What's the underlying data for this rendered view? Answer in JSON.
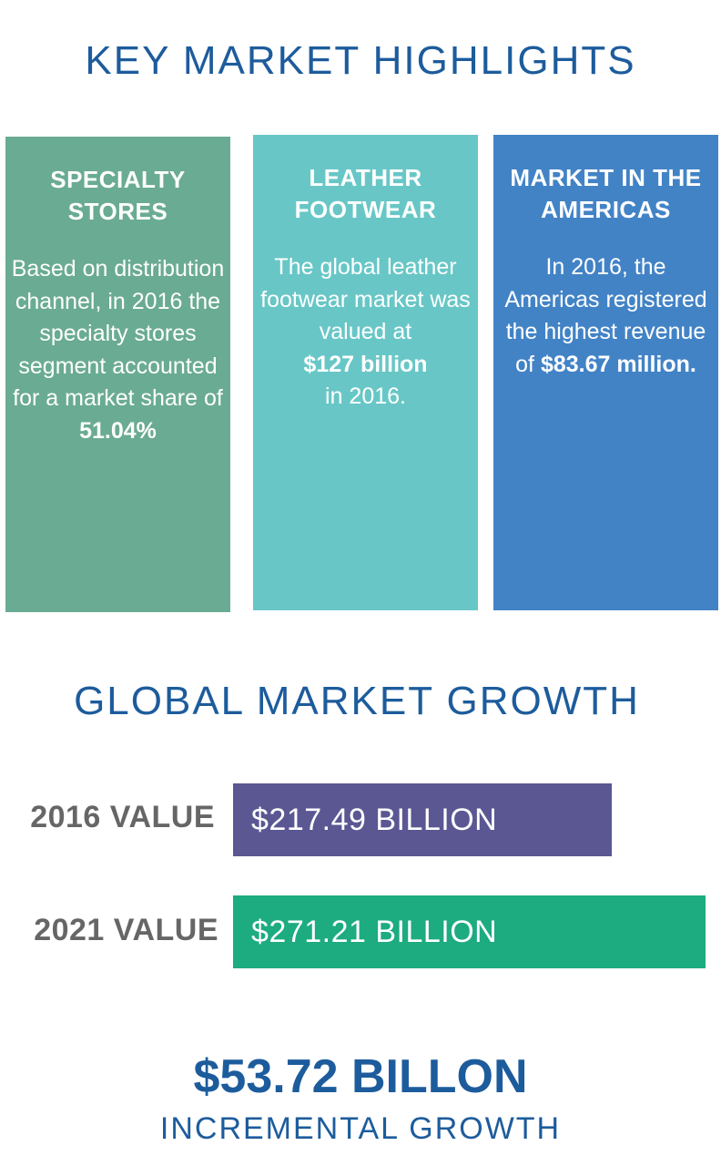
{
  "header": {
    "title": "KEY MARKET HIGHLIGHTS"
  },
  "cards": [
    {
      "title": "SPECIALTY STORES",
      "body": "Based on distribution channel, in 2016 the specialty stores segment accounted for a market share of",
      "highlight": "51.04%",
      "suffix": "",
      "color": "#6aab93"
    },
    {
      "title": "LEATHER FOOTWEAR",
      "body": "The global leather footwear market was valued at",
      "highlight": "$127 billion",
      "suffix": "in 2016.",
      "color": "#68c7c6"
    },
    {
      "title": "MARKET IN THE AMERICAS",
      "body": "In 2016, the Americas registered the highest revenue of",
      "highlight": "$83.67 million.",
      "suffix": "",
      "color": "#4283c6"
    }
  ],
  "growth": {
    "title": "GLOBAL MARKET GROWTH",
    "bar_scale_max": 271.21,
    "rows": [
      {
        "label": "2016 VALUE",
        "value_text": "$217.49 BILLION",
        "value": 217.49,
        "color": "#5a5793"
      },
      {
        "label": "2021 VALUE",
        "value_text": "$271.21 BILLION",
        "value": 271.21,
        "color": "#1dab80"
      }
    ]
  },
  "incremental": {
    "amount": "$53.72 BILLON",
    "label": "INCREMENTAL GROWTH"
  }
}
